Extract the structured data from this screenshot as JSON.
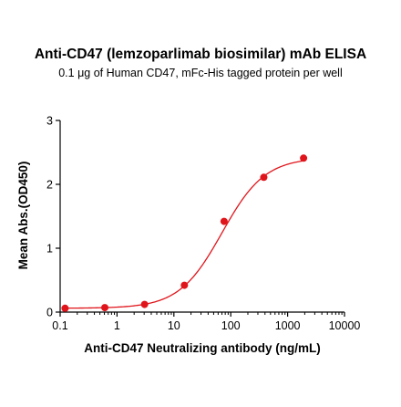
{
  "chart_data": {
    "type": "scatter",
    "title": "Anti-CD47 (lemzoparlimab biosimilar) mAb ELISA",
    "subtitle": "0.1 μg of Human CD47, mFc-His tagged protein per well",
    "xlabel": "Anti-CD47 Neutralizing antibody (ng/mL)",
    "ylabel": "Mean Abs.(OD450)",
    "x_scale": "log",
    "xlim": [
      0.1,
      10000
    ],
    "ylim": [
      0,
      3
    ],
    "x_ticks": [
      0.1,
      1,
      10,
      100,
      1000,
      10000
    ],
    "x_tick_labels": [
      "0.1",
      "1",
      "10",
      "100",
      "1000",
      "10000"
    ],
    "y_ticks": [
      0,
      1,
      2,
      3
    ],
    "y_tick_labels": [
      "0",
      "1",
      "2",
      "3"
    ],
    "grid": false,
    "legend": "none",
    "color": "#e0151b",
    "series": [
      {
        "x": [
          0.122,
          0.61,
          3.05,
          15.3,
          76.3,
          381,
          1907
        ],
        "y": [
          0.06,
          0.07,
          0.12,
          0.42,
          1.42,
          2.11,
          2.41
        ]
      }
    ],
    "fit": {
      "type": "4PL",
      "bottom": 0.06,
      "top": 2.42,
      "ec50": 70,
      "hill": 1.15
    }
  }
}
